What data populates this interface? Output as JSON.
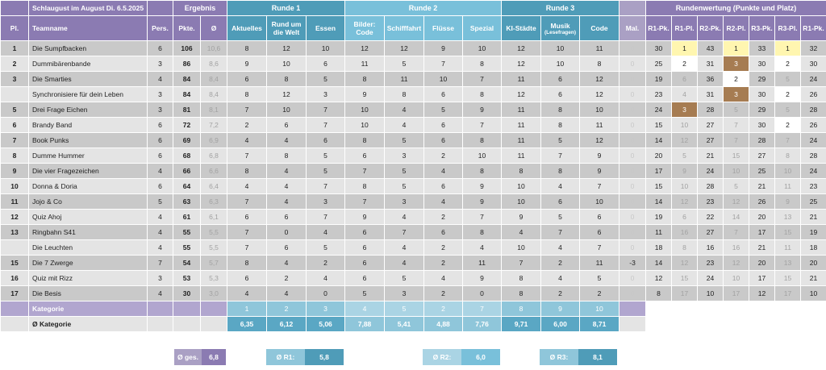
{
  "title": "Schlaugust im August Di. 6.5.2025",
  "groups": {
    "ergebnis": "Ergebnis",
    "runde1": "Runde 1",
    "runde2": "Runde 2",
    "runde3": "Runde 3",
    "rundenwertung": "Rundenwertung (Punkte und Platz)"
  },
  "headers": {
    "pl": "Pl.",
    "team": "Teamname",
    "pers": "Pers.",
    "pkte": "Pkte.",
    "avg": "Ø",
    "aktuelles": "Aktuelles",
    "rund1": "Rund um",
    "rund2": "die Welt",
    "essen": "Essen",
    "bilder1": "Bilder:",
    "bilder2": "Code",
    "schifffahrt": "Schifffahrt",
    "fluesse": "Flüsse",
    "spezial": "Spezial",
    "ki": "KI-Städte",
    "musik": "Musik",
    "musik_sub": "(Lesefragen)",
    "code": "Code",
    "mal": "Mal.",
    "r1pk": "R1-Pk.",
    "r1pl": "R1-Pl.",
    "r2pk": "R2-Pk.",
    "r2pl": "R2-Pl.",
    "r3pk": "R3-Pk.",
    "r3pl": "R3-Pl.",
    "r1pk_b": "R1-Pk."
  },
  "rows": [
    {
      "pl": "1",
      "team": "Die Sumpfbacken",
      "pers": "6",
      "pkte": "106",
      "avg": "10,6",
      "s": [
        "8",
        "12",
        "10",
        "12",
        "12",
        "9",
        "10",
        "12",
        "10",
        "11"
      ],
      "mal": "0",
      "r1pk": "30",
      "r1pl": "1",
      "r2pk": "43",
      "r2pl": "1",
      "r3pk": "33",
      "r3pl": "1",
      "last": "32"
    },
    {
      "pl": "2",
      "team": "Dummibärenbande",
      "pers": "3",
      "pkte": "86",
      "avg": "8,6",
      "s": [
        "9",
        "10",
        "6",
        "11",
        "5",
        "7",
        "8",
        "12",
        "10",
        "8"
      ],
      "mal": "0",
      "r1pk": "25",
      "r1pl": "2",
      "r2pk": "31",
      "r2pl": "3",
      "r3pk": "30",
      "r3pl": "2",
      "last": "30"
    },
    {
      "pl": "3",
      "team": "Die Smarties",
      "pers": "4",
      "pkte": "84",
      "avg": "8,4",
      "s": [
        "6",
        "8",
        "5",
        "8",
        "11",
        "10",
        "7",
        "11",
        "6",
        "12"
      ],
      "mal": "0",
      "r1pk": "19",
      "r1pl": "6",
      "r2pk": "36",
      "r2pl": "2",
      "r3pk": "29",
      "r3pl": "5",
      "last": "24"
    },
    {
      "pl": "",
      "team": "Synchronisiere für dein Leben",
      "pers": "3",
      "pkte": "84",
      "avg": "8,4",
      "s": [
        "8",
        "12",
        "3",
        "9",
        "8",
        "6",
        "8",
        "12",
        "6",
        "12"
      ],
      "mal": "0",
      "r1pk": "23",
      "r1pl": "4",
      "r2pk": "31",
      "r2pl": "3",
      "r3pk": "30",
      "r3pl": "2",
      "last": "26"
    },
    {
      "pl": "5",
      "team": "Drei Frage Eichen",
      "pers": "3",
      "pkte": "81",
      "avg": "8,1",
      "s": [
        "7",
        "10",
        "7",
        "10",
        "4",
        "5",
        "9",
        "11",
        "8",
        "10"
      ],
      "mal": "0",
      "r1pk": "24",
      "r1pl": "3",
      "r2pk": "28",
      "r2pl": "5",
      "r3pk": "29",
      "r3pl": "5",
      "last": "28"
    },
    {
      "pl": "6",
      "team": "Brandy Band",
      "pers": "6",
      "pkte": "72",
      "avg": "7,2",
      "s": [
        "2",
        "6",
        "7",
        "10",
        "4",
        "6",
        "7",
        "11",
        "8",
        "11"
      ],
      "mal": "0",
      "r1pk": "15",
      "r1pl": "10",
      "r2pk": "27",
      "r2pl": "7",
      "r3pk": "30",
      "r3pl": "2",
      "last": "26"
    },
    {
      "pl": "7",
      "team": "Book Punks",
      "pers": "6",
      "pkte": "69",
      "avg": "6,9",
      "s": [
        "4",
        "4",
        "6",
        "8",
        "5",
        "6",
        "8",
        "11",
        "5",
        "12"
      ],
      "mal": "0",
      "r1pk": "14",
      "r1pl": "12",
      "r2pk": "27",
      "r2pl": "7",
      "r3pk": "28",
      "r3pl": "7",
      "last": "24"
    },
    {
      "pl": "8",
      "team": "Dumme Hummer",
      "pers": "6",
      "pkte": "68",
      "avg": "6,8",
      "s": [
        "7",
        "8",
        "5",
        "6",
        "3",
        "2",
        "10",
        "11",
        "7",
        "9"
      ],
      "mal": "0",
      "r1pk": "20",
      "r1pl": "5",
      "r2pk": "21",
      "r2pl": "15",
      "r3pk": "27",
      "r3pl": "8",
      "last": "28"
    },
    {
      "pl": "9",
      "team": "Die vier Fragezeichen",
      "pers": "4",
      "pkte": "66",
      "avg": "6,6",
      "s": [
        "8",
        "4",
        "5",
        "7",
        "5",
        "4",
        "8",
        "8",
        "8",
        "9"
      ],
      "mal": "0",
      "r1pk": "17",
      "r1pl": "9",
      "r2pk": "24",
      "r2pl": "10",
      "r3pk": "25",
      "r3pl": "10",
      "last": "24"
    },
    {
      "pl": "10",
      "team": "Donna & Doria",
      "pers": "6",
      "pkte": "64",
      "avg": "6,4",
      "s": [
        "4",
        "4",
        "7",
        "8",
        "5",
        "6",
        "9",
        "10",
        "4",
        "7"
      ],
      "mal": "0",
      "r1pk": "15",
      "r1pl": "10",
      "r2pk": "28",
      "r2pl": "5",
      "r3pk": "21",
      "r3pl": "11",
      "last": "23"
    },
    {
      "pl": "11",
      "team": "Jojo & Co",
      "pers": "5",
      "pkte": "63",
      "avg": "6,3",
      "s": [
        "7",
        "4",
        "3",
        "7",
        "3",
        "4",
        "9",
        "10",
        "6",
        "10"
      ],
      "mal": "0",
      "r1pk": "14",
      "r1pl": "12",
      "r2pk": "23",
      "r2pl": "12",
      "r3pk": "26",
      "r3pl": "9",
      "last": "25"
    },
    {
      "pl": "12",
      "team": "Quiz Ahoj",
      "pers": "4",
      "pkte": "61",
      "avg": "6,1",
      "s": [
        "6",
        "6",
        "7",
        "9",
        "4",
        "2",
        "7",
        "9",
        "5",
        "6"
      ],
      "mal": "0",
      "r1pk": "19",
      "r1pl": "6",
      "r2pk": "22",
      "r2pl": "14",
      "r3pk": "20",
      "r3pl": "13",
      "last": "21"
    },
    {
      "pl": "13",
      "team": "Ringbahn S41",
      "pers": "4",
      "pkte": "55",
      "avg": "5,5",
      "s": [
        "7",
        "0",
        "4",
        "6",
        "7",
        "6",
        "8",
        "4",
        "7",
        "6"
      ],
      "mal": "0",
      "r1pk": "11",
      "r1pl": "16",
      "r2pk": "27",
      "r2pl": "7",
      "r3pk": "17",
      "r3pl": "15",
      "last": "19"
    },
    {
      "pl": "",
      "team": "Die Leuchten",
      "pers": "4",
      "pkte": "55",
      "avg": "5,5",
      "s": [
        "7",
        "6",
        "5",
        "6",
        "4",
        "2",
        "4",
        "10",
        "4",
        "7"
      ],
      "mal": "0",
      "r1pk": "18",
      "r1pl": "8",
      "r2pk": "16",
      "r2pl": "16",
      "r3pk": "21",
      "r3pl": "11",
      "last": "18"
    },
    {
      "pl": "15",
      "team": "Die 7 Zwerge",
      "pers": "7",
      "pkte": "54",
      "avg": "5,7",
      "s": [
        "8",
        "4",
        "2",
        "6",
        "4",
        "2",
        "11",
        "7",
        "2",
        "11"
      ],
      "mal": "-3",
      "r1pk": "14",
      "r1pl": "12",
      "r2pk": "23",
      "r2pl": "12",
      "r3pk": "20",
      "r3pl": "13",
      "last": "20"
    },
    {
      "pl": "16",
      "team": "Quiz mit Rizz",
      "pers": "3",
      "pkte": "53",
      "avg": "5,3",
      "s": [
        "6",
        "2",
        "4",
        "6",
        "5",
        "4",
        "9",
        "8",
        "4",
        "5"
      ],
      "mal": "0",
      "r1pk": "12",
      "r1pl": "15",
      "r2pk": "24",
      "r2pl": "10",
      "r3pk": "17",
      "r3pl": "15",
      "last": "21"
    },
    {
      "pl": "17",
      "team": "Die Besis",
      "pers": "4",
      "pkte": "30",
      "avg": "3,0",
      "s": [
        "4",
        "4",
        "0",
        "5",
        "3",
        "2",
        "0",
        "8",
        "2",
        "2"
      ],
      "mal": "0",
      "r1pk": "8",
      "r1pl": "17",
      "r2pk": "10",
      "r2pl": "17",
      "r3pk": "12",
      "r3pl": "17",
      "last": "10"
    }
  ],
  "highlights": {
    "yellow": [
      [
        0,
        "r1pl"
      ],
      [
        0,
        "r2pl"
      ],
      [
        0,
        "r3pl"
      ]
    ],
    "brown": [
      [
        1,
        "r2pl"
      ],
      [
        3,
        "r2pl"
      ],
      [
        4,
        "r1pl"
      ]
    ],
    "white": [
      [
        1,
        "r1pl"
      ],
      [
        1,
        "r3pl"
      ],
      [
        2,
        "r2pl"
      ],
      [
        3,
        "r3pl"
      ],
      [
        5,
        "r3pl"
      ]
    ]
  },
  "kategorie": {
    "label": "Kategorie",
    "nums": [
      "1",
      "2",
      "3",
      "4",
      "5",
      "2",
      "7",
      "8",
      "9",
      "10"
    ]
  },
  "avg_kategorie": {
    "label": "Ø Kategorie",
    "vals": [
      "6,35",
      "6,12",
      "5,06",
      "7,88",
      "5,41",
      "4,88",
      "7,76",
      "9,71",
      "6,00",
      "8,71"
    ]
  },
  "summary": [
    {
      "label": "Ø ges.",
      "value": "6,8"
    },
    {
      "label": "Ø R1:",
      "value": "5,8"
    },
    {
      "label": "Ø R2:",
      "value": "6,0"
    },
    {
      "label": "Ø R3:",
      "value": "8,1"
    }
  ],
  "colors": {
    "purple": "#8b7bb2",
    "blue": "#4f9cb8",
    "lightblue": "#79c0da",
    "gold": "#fff6b0",
    "brown": "#a67c52"
  }
}
